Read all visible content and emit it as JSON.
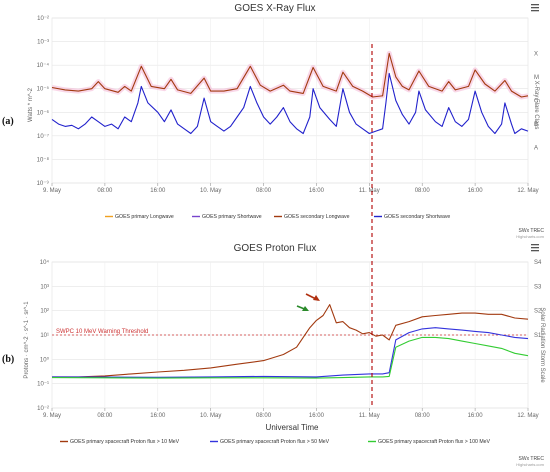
{
  "colors": {
    "primary_long": "#f0a020",
    "primary_short": "#7744cc",
    "secondary_long": "#a23a10",
    "secondary_short": "#2222cc",
    "proton_10": "#a23a10",
    "proton_50": "#3333dd",
    "proton_100": "#33cc33",
    "threshold": "#cc3333",
    "vline": "#b00000",
    "highlight": "#f4b6d6"
  },
  "menu_icon": "hamburger-icon",
  "chart_data": [
    {
      "type": "line",
      "panel_label": "(a)",
      "title": "GOES X-Ray Flux",
      "xlabel": "",
      "ylabel": "Watts * m^-2",
      "y_scale": "log",
      "y_ticks": [
        "10⁻²",
        "10⁻³",
        "10⁻⁴",
        "10⁻⁵",
        "10⁻⁶",
        "10⁻⁷",
        "10⁻⁸",
        "10⁻⁹"
      ],
      "y_tick_exponents": [
        -2,
        -3,
        -4,
        -5,
        -6,
        -7,
        -8,
        -9
      ],
      "ylim_exp": [
        -9,
        -2
      ],
      "right_axis_label": "X-Ray Flare Class",
      "flare_classes": [
        {
          "label": "X",
          "exp": -3.5
        },
        {
          "label": "M",
          "exp": -4.5
        },
        {
          "label": "C",
          "exp": -5.5
        },
        {
          "label": "B",
          "exp": -6.5
        },
        {
          "label": "A",
          "exp": -7.5
        }
      ],
      "x_ticks": [
        "9. May",
        "08:00",
        "16:00",
        "10. May",
        "08:00",
        "16:00",
        "11. May",
        "08:00",
        "16:00",
        "12. May"
      ],
      "x_tick_hours": [
        0,
        8,
        16,
        24,
        32,
        40,
        48,
        56,
        64,
        72
      ],
      "xlim_hours": [
        0,
        72
      ],
      "legend": [
        "GOES primary Longwave",
        "GOES primary Shortwave",
        "GOES secondary Longwave",
        "GOES secondary Shortwave"
      ],
      "credit": "SWx TREC",
      "credit_sub": "Highcharts.com",
      "series": [
        {
          "name": "GOES secondary Longwave",
          "color_key": "secondary_long",
          "points": [
            [
              0,
              -4.95
            ],
            [
              2,
              -5.05
            ],
            [
              4,
              -5.1
            ],
            [
              6,
              -5.0
            ],
            [
              7,
              -4.7
            ],
            [
              8,
              -5.0
            ],
            [
              10,
              -5.15
            ],
            [
              11,
              -4.9
            ],
            [
              12,
              -5.1
            ],
            [
              13.5,
              -4.05
            ],
            [
              15,
              -4.9
            ],
            [
              17,
              -5.0
            ],
            [
              18,
              -4.6
            ],
            [
              19,
              -5.05
            ],
            [
              21,
              -5.2
            ],
            [
              23,
              -4.55
            ],
            [
              24,
              -5.1
            ],
            [
              26,
              -5.1
            ],
            [
              28,
              -5.0
            ],
            [
              30,
              -4.05
            ],
            [
              31.5,
              -4.85
            ],
            [
              33,
              -5.1
            ],
            [
              35,
              -4.85
            ],
            [
              36,
              -5.1
            ],
            [
              38,
              -5.2
            ],
            [
              39.5,
              -4.1
            ],
            [
              41,
              -4.9
            ],
            [
              43,
              -5.1
            ],
            [
              44,
              -4.3
            ],
            [
              45.5,
              -4.9
            ],
            [
              47,
              -5.1
            ],
            [
              48.5,
              -5.35
            ],
            [
              50,
              -5.3
            ],
            [
              51,
              -3.5
            ],
            [
              52,
              -4.5
            ],
            [
              53,
              -4.9
            ],
            [
              54,
              -5.05
            ],
            [
              55.5,
              -4.25
            ],
            [
              57,
              -4.9
            ],
            [
              59,
              -5.1
            ],
            [
              60,
              -4.7
            ],
            [
              61,
              -5.05
            ],
            [
              63,
              -4.9
            ],
            [
              64,
              -4.2
            ],
            [
              65.5,
              -4.8
            ],
            [
              67,
              -5.1
            ],
            [
              68.5,
              -4.65
            ],
            [
              69.5,
              -5.1
            ],
            [
              71,
              -5.35
            ],
            [
              72,
              -5.3
            ]
          ]
        },
        {
          "name": "GOES secondary Shortwave",
          "color_key": "secondary_short",
          "points": [
            [
              0,
              -6.3
            ],
            [
              1,
              -6.5
            ],
            [
              2,
              -6.6
            ],
            [
              3,
              -6.55
            ],
            [
              4,
              -6.7
            ],
            [
              5,
              -6.5
            ],
            [
              6,
              -6.2
            ],
            [
              7,
              -6.4
            ],
            [
              8,
              -6.6
            ],
            [
              9,
              -6.5
            ],
            [
              10,
              -6.7
            ],
            [
              11,
              -6.2
            ],
            [
              12,
              -6.4
            ],
            [
              13,
              -5.6
            ],
            [
              13.5,
              -4.9
            ],
            [
              14.5,
              -5.6
            ],
            [
              16,
              -6.0
            ],
            [
              17,
              -6.4
            ],
            [
              18,
              -5.9
            ],
            [
              19,
              -6.5
            ],
            [
              20,
              -6.7
            ],
            [
              21,
              -6.9
            ],
            [
              22,
              -6.6
            ],
            [
              23,
              -5.4
            ],
            [
              24,
              -6.4
            ],
            [
              25,
              -6.6
            ],
            [
              26,
              -6.8
            ],
            [
              27,
              -6.6
            ],
            [
              28,
              -6.2
            ],
            [
              29,
              -5.8
            ],
            [
              30,
              -4.9
            ],
            [
              31,
              -5.6
            ],
            [
              32,
              -6.2
            ],
            [
              33,
              -6.5
            ],
            [
              34,
              -6.2
            ],
            [
              35,
              -5.8
            ],
            [
              36,
              -6.4
            ],
            [
              37,
              -6.7
            ],
            [
              38,
              -6.9
            ],
            [
              39,
              -6.2
            ],
            [
              39.5,
              -5.0
            ],
            [
              40.5,
              -5.8
            ],
            [
              42,
              -6.3
            ],
            [
              43,
              -6.6
            ],
            [
              44,
              -5.0
            ],
            [
              45,
              -6.0
            ],
            [
              46,
              -6.5
            ],
            [
              47,
              -6.7
            ],
            [
              48,
              -6.9
            ],
            [
              49,
              -6.8
            ],
            [
              50,
              -6.7
            ],
            [
              50.5,
              -5.6
            ],
            [
              51,
              -4.35
            ],
            [
              52,
              -5.5
            ],
            [
              53,
              -6.1
            ],
            [
              54,
              -6.5
            ],
            [
              55,
              -6.0
            ],
            [
              55.5,
              -5.1
            ],
            [
              56.5,
              -5.9
            ],
            [
              58,
              -6.4
            ],
            [
              59,
              -6.6
            ],
            [
              60,
              -5.8
            ],
            [
              61,
              -6.4
            ],
            [
              62,
              -6.6
            ],
            [
              63,
              -6.3
            ],
            [
              64,
              -5.1
            ],
            [
              65,
              -6.0
            ],
            [
              66,
              -6.6
            ],
            [
              67,
              -6.9
            ],
            [
              68,
              -6.5
            ],
            [
              68.5,
              -5.6
            ],
            [
              69.5,
              -6.5
            ],
            [
              70,
              -6.9
            ],
            [
              71,
              -6.7
            ],
            [
              72,
              -6.8
            ]
          ]
        }
      ]
    },
    {
      "type": "line",
      "panel_label": "(b)",
      "title": "GOES Proton Flux",
      "xlabel": "Universal Time",
      "ylabel": "Protons · cm^-2 · s^-1 · sr^-1",
      "y_scale": "log",
      "y_ticks": [
        "10⁴",
        "10³",
        "10²",
        "10¹",
        "10⁰",
        "10⁻¹",
        "10⁻²"
      ],
      "y_tick_exponents": [
        4,
        3,
        2,
        1,
        0,
        -1,
        -2
      ],
      "ylim_exp": [
        -2,
        4
      ],
      "right_axis_label": "Solar Radiation Storm Scale",
      "storm_scale": [
        {
          "label": "S4",
          "exp": 4
        },
        {
          "label": "S3",
          "exp": 3
        },
        {
          "label": "S2",
          "exp": 2
        },
        {
          "label": "S1",
          "exp": 1
        }
      ],
      "threshold": {
        "label": "SWPC 10 MeV Warning Threshold",
        "exp": 1
      },
      "x_ticks": [
        "9. May",
        "08:00",
        "16:00",
        "10. May",
        "08:00",
        "16:00",
        "11. May",
        "08:00",
        "16:00",
        "12. May"
      ],
      "x_tick_hours": [
        0,
        8,
        16,
        24,
        32,
        40,
        48,
        56,
        64,
        72
      ],
      "xlim_hours": [
        0,
        72
      ],
      "legend": [
        "GOES primary spacecraft Proton flux > 10 MeV",
        "GOES primary spacecraft Proton flux > 50 MeV",
        "GOES primary spacecraft Proton flux > 100 MeV"
      ],
      "credit": "SWx TREC",
      "credit_sub": "Highcharts.com",
      "series": [
        {
          "name": "GOES primary spacecraft Proton flux > 10 MeV",
          "color_key": "proton_10",
          "points": [
            [
              0,
              -0.72
            ],
            [
              4,
              -0.72
            ],
            [
              8,
              -0.68
            ],
            [
              12,
              -0.6
            ],
            [
              16,
              -0.52
            ],
            [
              20,
              -0.45
            ],
            [
              24,
              -0.35
            ],
            [
              28,
              -0.2
            ],
            [
              32,
              -0.05
            ],
            [
              35,
              0.2
            ],
            [
              37,
              0.5
            ],
            [
              38,
              0.9
            ],
            [
              39,
              1.3
            ],
            [
              40,
              1.6
            ],
            [
              41,
              1.8
            ],
            [
              42,
              2.25
            ],
            [
              43,
              1.5
            ],
            [
              44,
              1.55
            ],
            [
              45,
              1.3
            ],
            [
              46,
              1.2
            ],
            [
              47,
              1.05
            ],
            [
              48,
              1.1
            ],
            [
              49,
              0.95
            ],
            [
              50,
              1.0
            ],
            [
              51,
              0.8
            ],
            [
              52,
              1.4
            ],
            [
              54,
              1.55
            ],
            [
              56,
              1.75
            ],
            [
              58,
              1.8
            ],
            [
              60,
              1.85
            ],
            [
              62,
              1.9
            ],
            [
              64,
              1.9
            ],
            [
              66,
              1.85
            ],
            [
              68,
              1.85
            ],
            [
              70,
              1.7
            ],
            [
              72,
              1.65
            ]
          ]
        },
        {
          "name": "GOES primary spacecraft Proton flux > 50 MeV",
          "color_key": "proton_50",
          "points": [
            [
              0,
              -0.72
            ],
            [
              8,
              -0.73
            ],
            [
              16,
              -0.74
            ],
            [
              24,
              -0.72
            ],
            [
              32,
              -0.7
            ],
            [
              40,
              -0.72
            ],
            [
              44,
              -0.65
            ],
            [
              48,
              -0.6
            ],
            [
              50,
              -0.6
            ],
            [
              51,
              -0.55
            ],
            [
              52,
              0.8
            ],
            [
              54,
              1.1
            ],
            [
              56,
              1.25
            ],
            [
              58,
              1.3
            ],
            [
              60,
              1.25
            ],
            [
              62,
              1.2
            ],
            [
              64,
              1.15
            ],
            [
              66,
              1.1
            ],
            [
              68,
              1.0
            ],
            [
              70,
              0.9
            ],
            [
              72,
              0.85
            ]
          ]
        },
        {
          "name": "GOES primary spacecraft Proton flux > 100 MeV",
          "color_key": "proton_100",
          "points": [
            [
              0,
              -0.75
            ],
            [
              8,
              -0.76
            ],
            [
              16,
              -0.77
            ],
            [
              24,
              -0.76
            ],
            [
              32,
              -0.76
            ],
            [
              40,
              -0.77
            ],
            [
              44,
              -0.75
            ],
            [
              48,
              -0.72
            ],
            [
              50,
              -0.72
            ],
            [
              51,
              -0.7
            ],
            [
              52,
              0.5
            ],
            [
              54,
              0.75
            ],
            [
              56,
              0.9
            ],
            [
              58,
              0.9
            ],
            [
              60,
              0.85
            ],
            [
              62,
              0.75
            ],
            [
              64,
              0.65
            ],
            [
              66,
              0.55
            ],
            [
              68,
              0.45
            ],
            [
              70,
              0.25
            ],
            [
              72,
              0.15
            ]
          ]
        }
      ]
    }
  ]
}
